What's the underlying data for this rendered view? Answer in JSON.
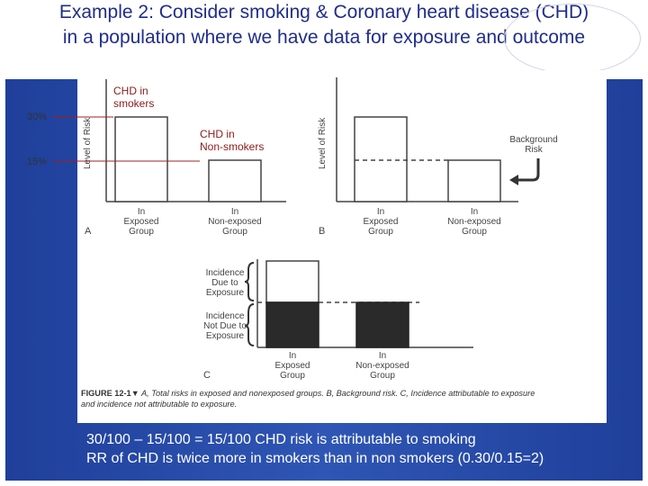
{
  "title": {
    "line1": "Example 2: Consider smoking & Coronary heart disease (CHD)",
    "line2": "in a population where we have data for exposure and outcome"
  },
  "annotations": {
    "chd_smokers_line1": "CHD in",
    "chd_smokers_line2": "smokers",
    "chd_nonsmokers_line1": "CHD in",
    "chd_nonsmokers_line2": "Non-smokers",
    "pct_30": "30%",
    "pct_15": "15%"
  },
  "figure": {
    "panel_a": {
      "letter": "A",
      "ylabel": "Level of Risk",
      "bar1_line1": "In",
      "bar1_line2": "Exposed",
      "bar1_line3": "Group",
      "bar2_line1": "In",
      "bar2_line2": "Non-exposed",
      "bar2_line3": "Group"
    },
    "panel_b": {
      "letter": "B",
      "ylabel": "Level of Risk",
      "bar1_line1": "In",
      "bar1_line2": "Exposed",
      "bar1_line3": "Group",
      "bar2_line1": "In",
      "bar2_line2": "Non-exposed",
      "bar2_line3": "Group",
      "background_line1": "Background",
      "background_line2": "Risk"
    },
    "panel_c": {
      "letter": "C",
      "due_line1": "Incidence",
      "due_line2": "Due to",
      "due_line3": "Exposure",
      "notdue_line1": "Incidence",
      "notdue_line2": "Not Due to",
      "notdue_line3": "Exposure",
      "bar1_line1": "In",
      "bar1_line2": "Exposed",
      "bar1_line3": "Group",
      "bar2_line1": "In",
      "bar2_line2": "Non-exposed",
      "bar2_line3": "Group"
    },
    "caption_bold": "FIGURE 12-1▼",
    "caption_line1": " A, Total risks in exposed and nonexposed groups. B, Background risk. C, Incidence attributable to exposure",
    "caption_line2": "and incidence not attributable to exposure."
  },
  "bottom": {
    "line1": "30/100 – 15/100 = 15/100 CHD risk is attributable to smoking",
    "line2": "RR of CHD is twice more in smokers than in non smokers (0.30/0.15=2)"
  },
  "colors": {
    "title": "#1f2d8a",
    "panel": "#2f56b5",
    "annotation": "#8a1a1a"
  }
}
